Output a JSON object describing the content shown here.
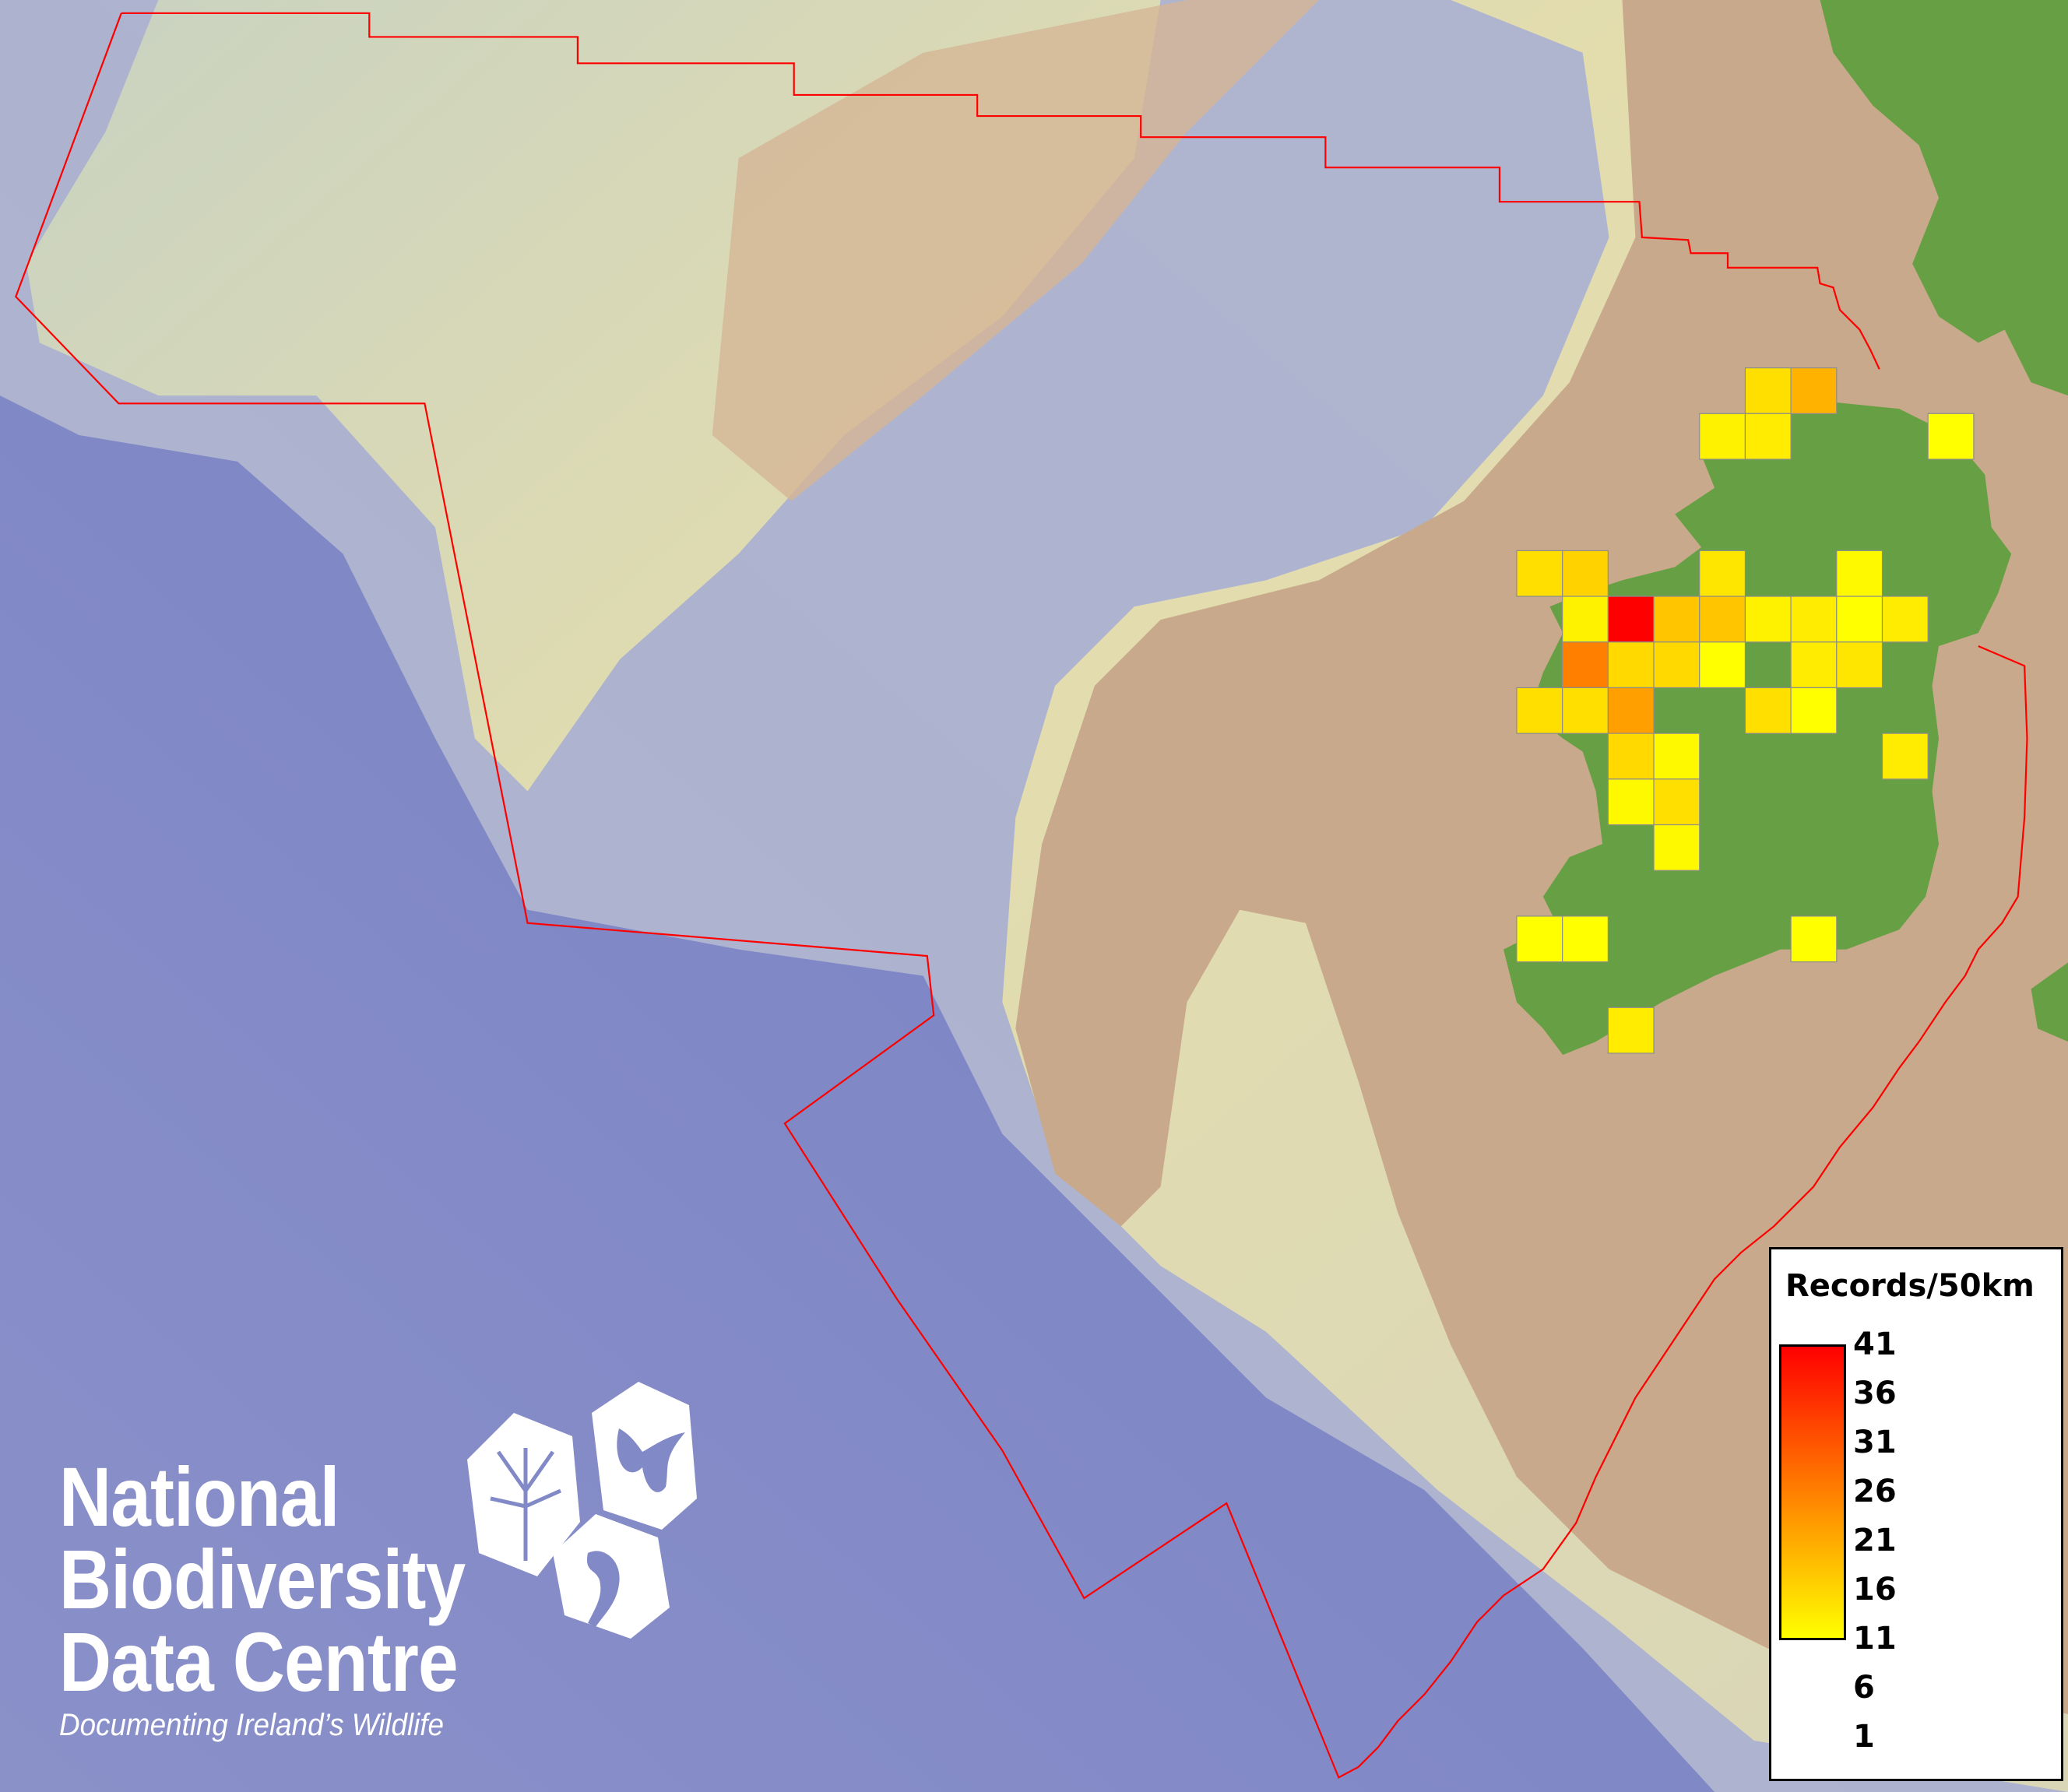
{
  "map": {
    "colors": {
      "deep_ocean": "#7f86c4",
      "slope": "#b9bcc8",
      "shelf": "#e2dcae",
      "land_shelf": "#c9a98b",
      "land": "#67a044",
      "boundary": "#ff0000",
      "cell_outline": "#8c8c8c"
    },
    "value_range": [
      1,
      41
    ],
    "cells": [
      {
        "row": 0,
        "col": 5,
        "records": 6
      },
      {
        "row": 0,
        "col": 6,
        "records": 13
      },
      {
        "row": 1,
        "col": 4,
        "records": 3
      },
      {
        "row": 1,
        "col": 5,
        "records": 4
      },
      {
        "row": 1,
        "col": 9,
        "records": 1
      },
      {
        "row": 4,
        "col": 0,
        "records": 6
      },
      {
        "row": 4,
        "col": 1,
        "records": 8
      },
      {
        "row": 4,
        "col": 4,
        "records": 5
      },
      {
        "row": 4,
        "col": 7,
        "records": 2
      },
      {
        "row": 5,
        "col": 1,
        "records": 3
      },
      {
        "row": 5,
        "col": 2,
        "records": 41
      },
      {
        "row": 5,
        "col": 3,
        "records": 10
      },
      {
        "row": 5,
        "col": 4,
        "records": 10
      },
      {
        "row": 5,
        "col": 5,
        "records": 3
      },
      {
        "row": 5,
        "col": 6,
        "records": 4
      },
      {
        "row": 5,
        "col": 7,
        "records": 1
      },
      {
        "row": 5,
        "col": 8,
        "records": 4
      },
      {
        "row": 6,
        "col": 1,
        "records": 21
      },
      {
        "row": 6,
        "col": 2,
        "records": 7
      },
      {
        "row": 6,
        "col": 3,
        "records": 7
      },
      {
        "row": 6,
        "col": 4,
        "records": 1
      },
      {
        "row": 6,
        "col": 6,
        "records": 4
      },
      {
        "row": 6,
        "col": 7,
        "records": 5
      },
      {
        "row": 7,
        "col": 0,
        "records": 6
      },
      {
        "row": 7,
        "col": 1,
        "records": 6
      },
      {
        "row": 7,
        "col": 2,
        "records": 16
      },
      {
        "row": 7,
        "col": 5,
        "records": 6
      },
      {
        "row": 7,
        "col": 6,
        "records": 1
      },
      {
        "row": 8,
        "col": 2,
        "records": 7
      },
      {
        "row": 8,
        "col": 3,
        "records": 2
      },
      {
        "row": 8,
        "col": 8,
        "records": 4
      },
      {
        "row": 9,
        "col": 2,
        "records": 2
      },
      {
        "row": 9,
        "col": 3,
        "records": 6
      },
      {
        "row": 10,
        "col": 3,
        "records": 2
      },
      {
        "row": 12,
        "col": 0,
        "records": 1
      },
      {
        "row": 12,
        "col": 1,
        "records": 1
      },
      {
        "row": 12,
        "col": 6,
        "records": 1
      },
      {
        "row": 14,
        "col": 2,
        "records": 4
      }
    ]
  },
  "legend": {
    "title": "Records/50km",
    "ticks": [
      "41",
      "36",
      "31",
      "26",
      "21",
      "16",
      "11",
      "6",
      "1"
    ],
    "gradient": [
      "#ffff00",
      "#ff8000",
      "#ff0000"
    ]
  },
  "logo": {
    "line1": "National",
    "line2": "Biodiversity",
    "line3": "Data Centre",
    "tagline": "Documenting Ireland’s Wildlife",
    "icons": [
      "tree-icon",
      "butterfly-icon",
      "seahorse-icon"
    ]
  }
}
